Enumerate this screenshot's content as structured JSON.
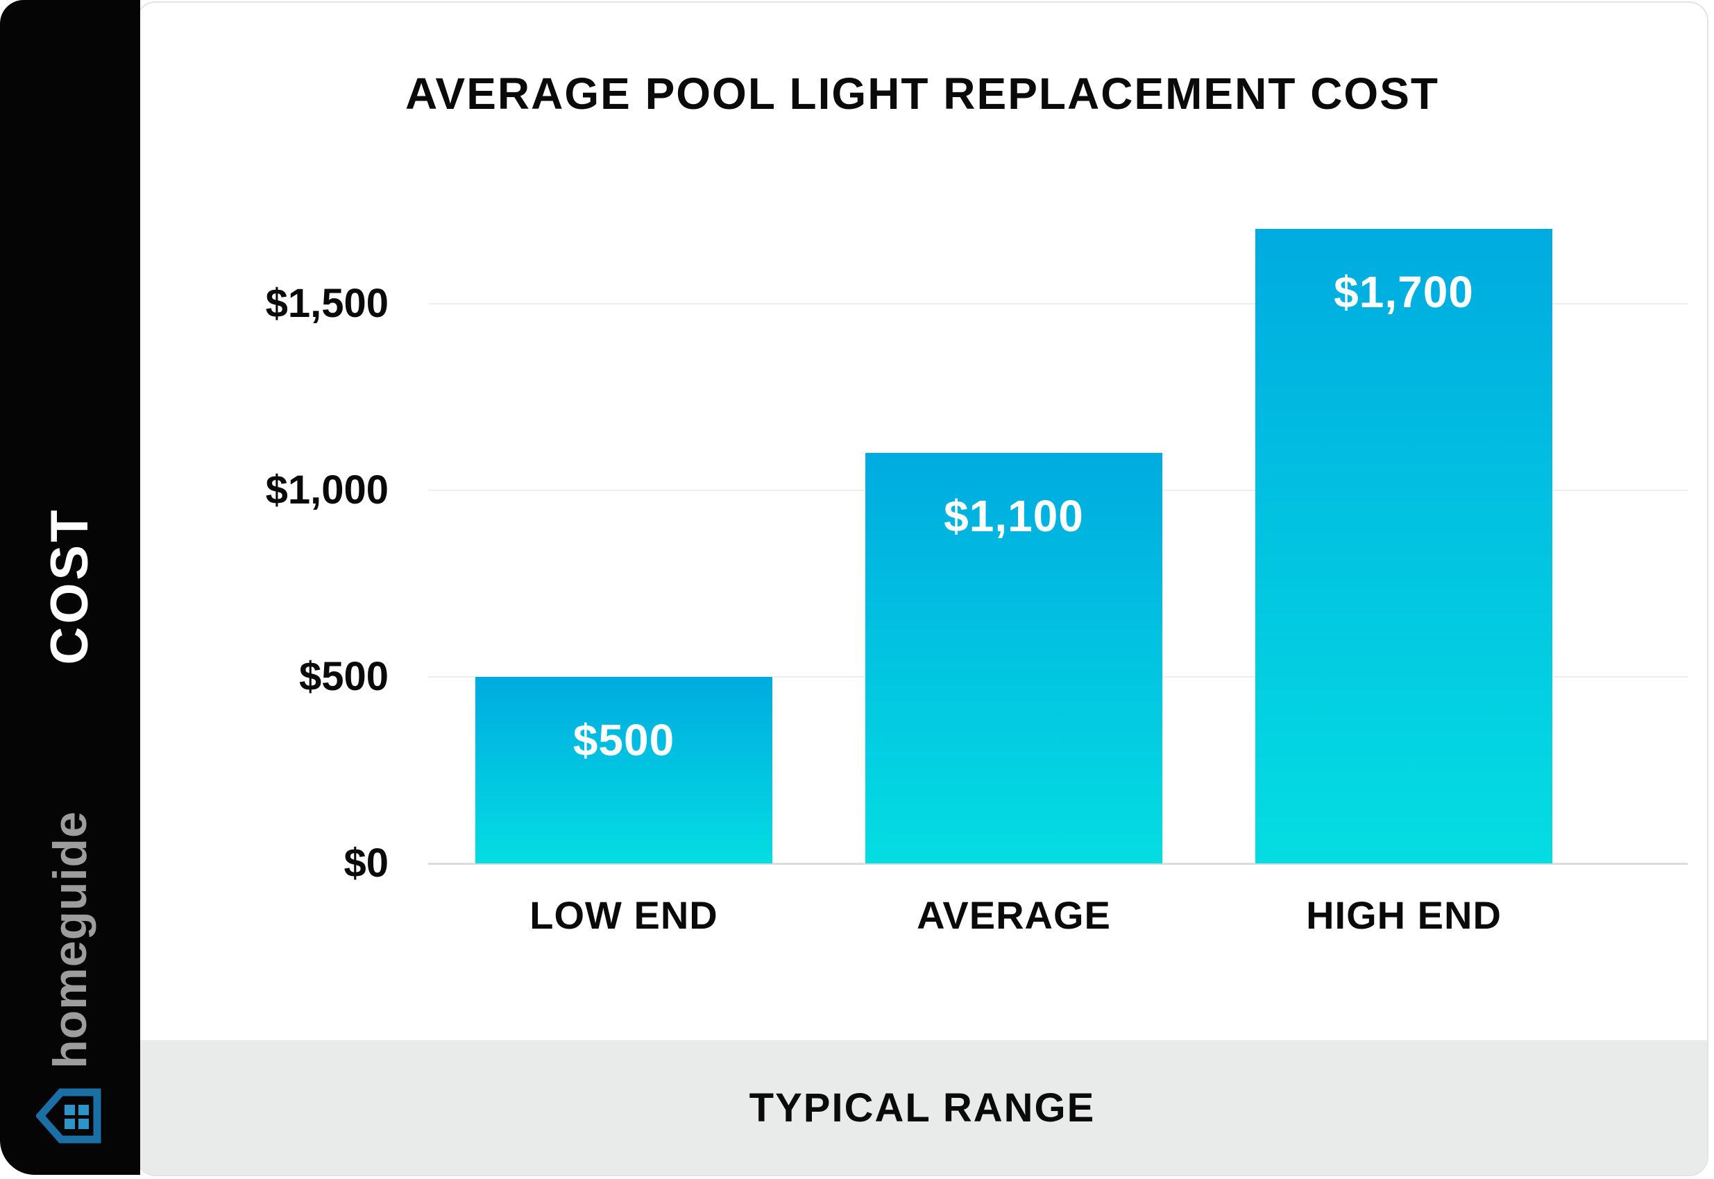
{
  "title": "AVERAGE POOL LIGHT REPLACEMENT COST",
  "sidebar": {
    "axis_label": "COST",
    "brand": "homeguide",
    "house_icon": "house-icon",
    "house_outline_color": "#1a6fa5",
    "house_window_color": "#2b94c8"
  },
  "footer": {
    "label": "TYPICAL RANGE"
  },
  "colors": {
    "bar_gradient_top": "#00abe0",
    "bar_gradient_bottom": "#04dde2",
    "sidebar_bg": "#050505",
    "footer_bg": "#e9eaea",
    "gridline": "#efefef",
    "baseline": "#dcdcdc",
    "text": "#0a0a0a"
  },
  "chart_data": {
    "type": "bar",
    "categories": [
      "LOW END",
      "AVERAGE",
      "HIGH END"
    ],
    "values": [
      500,
      1100,
      1700
    ],
    "bar_labels": [
      "$500",
      "$1,100",
      "$1,700"
    ],
    "title": "AVERAGE POOL LIGHT REPLACEMENT COST",
    "xlabel": "TYPICAL RANGE",
    "ylabel": "COST",
    "ylim": [
      0,
      1750
    ],
    "yticks": [
      {
        "label": "$0",
        "value": 0
      },
      {
        "label": "$500",
        "value": 500
      },
      {
        "label": "$1,000",
        "value": 1000
      },
      {
        "label": "$1,500",
        "value": 1500
      }
    ],
    "grid": "horizontal-only",
    "legend": "none",
    "value_labels_position": "inside-top"
  }
}
